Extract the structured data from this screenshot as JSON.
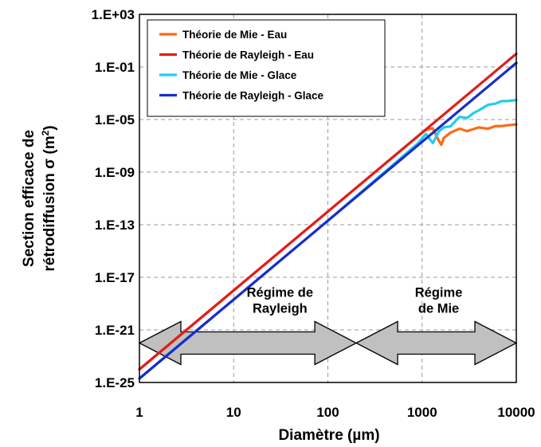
{
  "chart_data": {
    "type": "line",
    "title": "",
    "xlabel": "Diamètre (µm)",
    "ylabel_line1": "Section efficace de",
    "ylabel_line2": "rétrodiffusion σ (m",
    "ylabel_sup": "2",
    "ylabel_close": ")",
    "x_scale": "log",
    "y_scale": "log",
    "xlim": [
      1,
      10000
    ],
    "ylim": [
      1e-25,
      1000
    ],
    "x_ticks": [
      {
        "value": 1,
        "label": "1"
      },
      {
        "value": 10,
        "label": "10"
      },
      {
        "value": 100,
        "label": "100"
      },
      {
        "value": 1000,
        "label": "1000"
      },
      {
        "value": 10000,
        "label": "10000"
      }
    ],
    "y_ticks": [
      {
        "value": 1000,
        "label": "1.E+03"
      },
      {
        "value": 0.1,
        "label": "1.E-01"
      },
      {
        "value": 1e-05,
        "label": "1.E-05"
      },
      {
        "value": 1e-09,
        "label": "1.E-09"
      },
      {
        "value": 1e-13,
        "label": "1.E-13"
      },
      {
        "value": 1e-17,
        "label": "1.E-17"
      },
      {
        "value": 1e-21,
        "label": "1.E-21"
      },
      {
        "value": 1e-25,
        "label": "1.E-25"
      }
    ],
    "grid": true,
    "legend_position": "top-left",
    "series": [
      {
        "name": "Théorie de Mie - Eau",
        "color": "#ff6a10",
        "x": [
          1,
          10,
          100,
          1000,
          1100,
          1300,
          1500,
          1600,
          1700,
          2000,
          2500,
          3000,
          4000,
          5000,
          6000,
          7000,
          8000,
          10000
        ],
        "y": [
          1e-24,
          1e-18,
          1e-12,
          1e-06,
          1.6e-06,
          2.2e-06,
          2.5e-07,
          1.2e-07,
          4e-07,
          1e-06,
          2e-06,
          1.3e-06,
          2.5e-06,
          2e-06,
          3.2e-06,
          3.2e-06,
          3.6e-06,
          4.2e-06
        ]
      },
      {
        "name": "Théorie de Rayleigh - Eau",
        "color": "#e01e1e",
        "x": [
          1,
          10000
        ],
        "y": [
          1e-24,
          1.0
        ]
      },
      {
        "name": "Théorie de Mie - Glace",
        "color": "#22ccee",
        "x": [
          1,
          10,
          100,
          900,
          1100,
          1300,
          1500,
          1700,
          2000,
          2500,
          3000,
          3500,
          4000,
          5000,
          6000,
          7000,
          8000,
          10000
        ],
        "y": [
          2e-25,
          2e-19,
          2e-13,
          1.5e-07,
          8e-07,
          1.6e-07,
          1.2e-06,
          2.5e-06,
          3e-06,
          1.6e-05,
          1.3e-05,
          3e-05,
          5e-05,
          0.00013,
          0.00016,
          0.00025,
          0.00025,
          0.0003
        ]
      },
      {
        "name": "Théorie de Rayleigh - Glace",
        "color": "#1a2ccc",
        "x": [
          1,
          10000
        ],
        "y": [
          2e-25,
          0.2
        ]
      }
    ],
    "annotations": [
      {
        "line1": "Régime de",
        "line2": "Rayleigh",
        "x_center": 31,
        "y_top": 1e-18
      },
      {
        "line1": "Régime",
        "line2": "de Mie",
        "x_center": 1500,
        "y_top": 1e-18
      }
    ],
    "regions": [
      {
        "label": "Régime de Rayleigh",
        "x_from": 1,
        "x_to": 200
      },
      {
        "label": "Régime de Mie",
        "x_from": 200,
        "x_to": 10000
      }
    ],
    "region_arrow_y": 1e-22,
    "region_arrow_color": "#c0c0c0"
  }
}
